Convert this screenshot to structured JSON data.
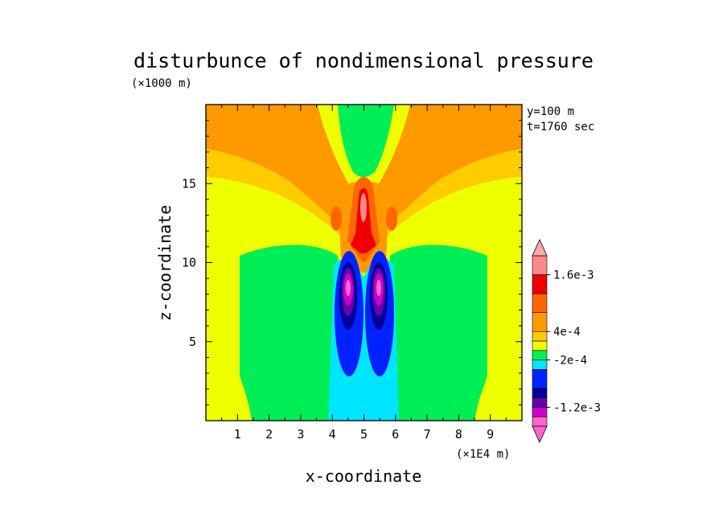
{
  "chart_data": {
    "type": "heatmap",
    "title": "disturbunce of nondimensional pressure",
    "ylabel": "z-coordinate",
    "xlabel": "x-coordinate",
    "y_unit": "(×1000 m)",
    "x_unit": "(×1E4 m)",
    "annotations": [
      "y=100 m",
      "t=1760 sec"
    ],
    "xlim": [
      0,
      10
    ],
    "ylim": [
      0,
      20
    ],
    "xticks": [
      1,
      2,
      3,
      4,
      5,
      6,
      7,
      8,
      9
    ],
    "yticks": [
      5,
      10,
      15
    ],
    "colorbar": {
      "labels": [
        {
          "text": "1.6e-3",
          "value": 0.0016
        },
        {
          "text": "4e-4",
          "value": 0.0004
        },
        {
          "text": "-2e-4",
          "value": -0.0002
        },
        {
          "text": "-1.2e-3",
          "value": -0.0012
        }
      ],
      "levels": [
        {
          "color": "#ff66cc",
          "from": -0.0016,
          "to": -0.0014
        },
        {
          "color": "#cc00cc",
          "from": -0.0014,
          "to": -0.0012
        },
        {
          "color": "#6600aa",
          "from": -0.0012,
          "to": -0.001
        },
        {
          "color": "#000099",
          "from": -0.001,
          "to": -0.0008
        },
        {
          "color": "#0022ff",
          "from": -0.0008,
          "to": -0.0004
        },
        {
          "color": "#00e5ff",
          "from": -0.0004,
          "to": -0.0002
        },
        {
          "color": "#00ee55",
          "from": -0.0002,
          "to": 0.0
        },
        {
          "color": "#eeff00",
          "from": 0.0,
          "to": 0.0002
        },
        {
          "color": "#ffcc00",
          "from": 0.0002,
          "to": 0.0004
        },
        {
          "color": "#ff9900",
          "from": 0.0004,
          "to": 0.0008
        },
        {
          "color": "#ff6600",
          "from": 0.0008,
          "to": 0.0012
        },
        {
          "color": "#ee0000",
          "from": 0.0012,
          "to": 0.0016
        },
        {
          "color": "#ff8888",
          "from": 0.0016,
          "to": 0.002
        }
      ],
      "upper_extend_color": "#ffaaaa",
      "lower_extend_color": "#ff66cc"
    }
  }
}
